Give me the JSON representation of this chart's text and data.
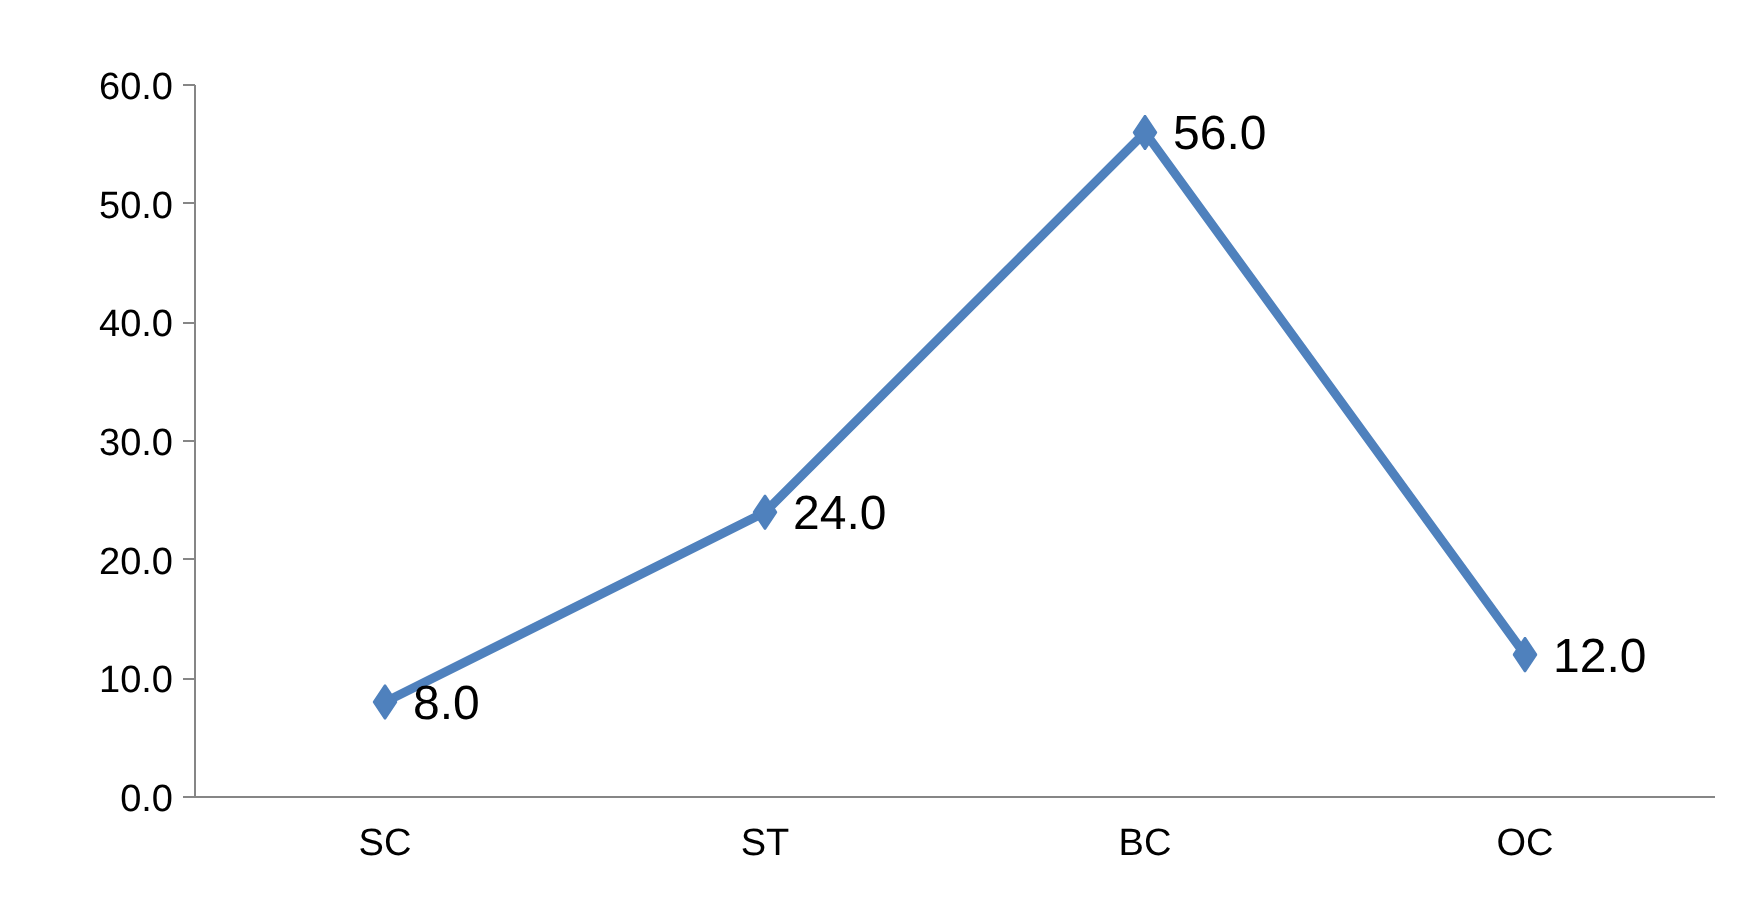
{
  "chart_data": {
    "type": "line",
    "categories": [
      "SC",
      "ST",
      "BC",
      "OC"
    ],
    "series": [
      {
        "color": "#4f81bd",
        "values": [
          8.0,
          24.0,
          56.0,
          12.0
        ],
        "value_labels": [
          "8.0",
          "24.0",
          "56.0",
          "12.0"
        ]
      }
    ],
    "ylim": [
      0,
      60
    ],
    "yticks": [
      {
        "value": 0,
        "label": "0.0"
      },
      {
        "value": 10,
        "label": "10.0"
      },
      {
        "value": 20,
        "label": "20.0"
      },
      {
        "value": 30,
        "label": "30.0"
      },
      {
        "value": 40,
        "label": "40.0"
      },
      {
        "value": 50,
        "label": "50.0"
      },
      {
        "value": 60,
        "label": "60.0"
      }
    ],
    "marker": "diamond",
    "line_style": "solid",
    "grid": false
  }
}
